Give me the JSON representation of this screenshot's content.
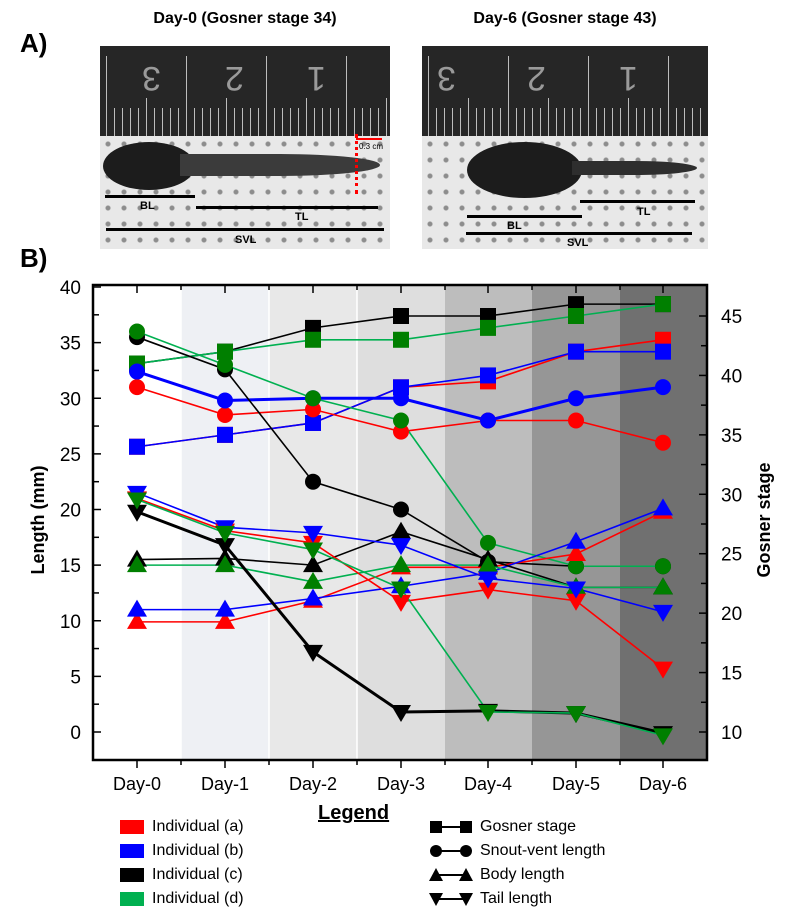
{
  "panels": {
    "a_label": "A)",
    "b_label": "B)"
  },
  "photos": [
    {
      "title": "Day-0 (Gosner stage 34)",
      "ruler_numbers": [
        "3",
        "2",
        "1"
      ],
      "scale_label": "0.3 cm",
      "measure_labels": {
        "bl": "BL",
        "tl": "TL",
        "svl": "SVL"
      }
    },
    {
      "title": "Day-6 (Gosner stage 43)",
      "ruler_numbers": [
        "3",
        "2",
        "1"
      ],
      "measure_labels": {
        "bl": "BL",
        "tl": "TL",
        "svl": "SVL"
      }
    }
  ],
  "colors": {
    "individual_a": "#ff0000",
    "individual_b": "#0000ff",
    "individual_c": "#000000",
    "individual_d_line": "#00b050",
    "individual_d_marker": "#007f00",
    "band_colors": [
      "#ffffff",
      "#eef0f4",
      "#e8e8e8",
      "#dedede",
      "#bdbdbd",
      "#969696",
      "#707070"
    ]
  },
  "legend": {
    "title": "Legend",
    "individuals": [
      {
        "label": "Individual (a)",
        "key": "a"
      },
      {
        "label": "Individual (b)",
        "key": "b"
      },
      {
        "label": "Individual (c)",
        "key": "c"
      },
      {
        "label": "Individual (d)",
        "key": "d"
      }
    ],
    "measures": [
      {
        "label": "Gosner stage",
        "marker": "square"
      },
      {
        "label": "Snout-vent length",
        "marker": "circle"
      },
      {
        "label": "Body length",
        "marker": "triangle-up"
      },
      {
        "label": "Tail length",
        "marker": "triangle-down"
      }
    ]
  },
  "chart_data": {
    "type": "line",
    "title": "",
    "categories": [
      "Day-0",
      "Day-1",
      "Day-2",
      "Day-3",
      "Day-4",
      "Day-5",
      "Day-6"
    ],
    "xlabel": "",
    "ylabel": "Length (mm)",
    "y2label": "Gosner stage",
    "ylim": [
      -2.5,
      40
    ],
    "yticks": [
      0,
      5,
      10,
      15,
      20,
      25,
      30,
      35,
      40
    ],
    "y2lim": [
      7.5,
      47.5
    ],
    "y2ticks": [
      10,
      15,
      20,
      25,
      30,
      35,
      40,
      45
    ],
    "grid": false,
    "background_bands": "one shaded band per day, darkening from Day-0 to Day-6",
    "legend_position": "below",
    "series": [
      {
        "name": "Individual (a) Gosner stage",
        "individual": "a",
        "measure": "gosner",
        "axis": "right",
        "values": [
          34,
          35,
          36,
          39,
          39.5,
          42,
          43
        ]
      },
      {
        "name": "Individual (b) Gosner stage",
        "individual": "b",
        "measure": "gosner",
        "axis": "right",
        "values": [
          34,
          35,
          36,
          39,
          40,
          42,
          42
        ]
      },
      {
        "name": "Individual (c) Gosner stage",
        "individual": "c",
        "measure": "gosner",
        "axis": "right",
        "values": [
          41,
          42,
          44,
          45,
          45,
          46,
          46
        ]
      },
      {
        "name": "Individual (d) Gosner stage",
        "individual": "d",
        "measure": "gosner",
        "axis": "right",
        "values": [
          41,
          42,
          43,
          43,
          44,
          45,
          46
        ]
      },
      {
        "name": "Individual (a) Snout-vent length",
        "individual": "a",
        "measure": "svl",
        "axis": "left",
        "values": [
          31.0,
          28.5,
          29.0,
          27.0,
          28.0,
          28.0,
          26.0
        ]
      },
      {
        "name": "Individual (b) Snout-vent length",
        "individual": "b",
        "measure": "svl",
        "axis": "left",
        "values": [
          32.4,
          29.8,
          30.0,
          30.0,
          28.0,
          30.0,
          31.0
        ]
      },
      {
        "name": "Individual (c) Snout-vent length",
        "individual": "c",
        "measure": "svl",
        "axis": "left",
        "values": [
          35.5,
          32.6,
          22.5,
          20.0,
          15.3,
          14.9,
          14.9
        ]
      },
      {
        "name": "Individual (d) Snout-vent length",
        "individual": "d",
        "measure": "svl",
        "axis": "left",
        "values": [
          36.0,
          33.0,
          30.0,
          28.0,
          17.0,
          14.9,
          14.9
        ]
      },
      {
        "name": "Individual (a) Body length",
        "individual": "a",
        "measure": "bl",
        "axis": "left",
        "values": [
          9.9,
          9.9,
          11.8,
          14.8,
          14.8,
          16.0,
          19.8
        ]
      },
      {
        "name": "Individual (b) Body length",
        "individual": "b",
        "measure": "bl",
        "axis": "left",
        "values": [
          11.0,
          11.0,
          12.0,
          13.1,
          14.3,
          17.1,
          20.1
        ]
      },
      {
        "name": "Individual (c) Body length",
        "individual": "c",
        "measure": "bl",
        "axis": "left",
        "values": [
          15.5,
          15.6,
          15.0,
          18.0,
          15.5,
          13.0,
          13.0
        ]
      },
      {
        "name": "Individual (d) Body length",
        "individual": "d",
        "measure": "bl",
        "axis": "left",
        "values": [
          15.0,
          15.0,
          13.5,
          15.0,
          15.0,
          13.0,
          13.0
        ]
      },
      {
        "name": "Individual (a) Tail length",
        "individual": "a",
        "measure": "tl",
        "axis": "left",
        "values": [
          21.0,
          18.1,
          17.0,
          11.7,
          12.8,
          11.8,
          5.7
        ]
      },
      {
        "name": "Individual (b) Tail length",
        "individual": "b",
        "measure": "tl",
        "axis": "left",
        "values": [
          21.5,
          18.4,
          17.9,
          16.8,
          13.8,
          12.9,
          10.8
        ]
      },
      {
        "name": "Individual (c) Tail length",
        "individual": "c",
        "measure": "tl",
        "axis": "left",
        "values": [
          19.8,
          16.8,
          7.2,
          1.8,
          1.9,
          1.7,
          -0.1
        ]
      },
      {
        "name": "Individual (d) Tail length",
        "individual": "d",
        "measure": "tl",
        "axis": "left",
        "values": [
          20.9,
          17.9,
          16.4,
          12.9,
          1.8,
          1.7,
          -0.3
        ]
      }
    ]
  }
}
